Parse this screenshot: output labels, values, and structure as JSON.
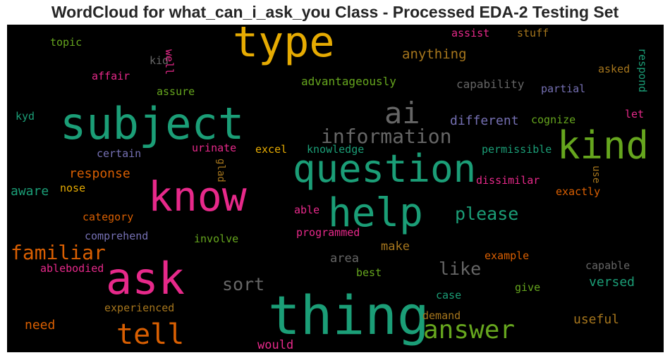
{
  "chart_data": {
    "type": "wordcloud",
    "title": "WordCloud for what_can_i_ask_you Class - Processed EDA-2 Testing Set",
    "background": "#000000",
    "palette": [
      "#1b9e77",
      "#d95f02",
      "#7570b3",
      "#e7298a",
      "#66a61e",
      "#e6ab02",
      "#a6761d",
      "#666666"
    ],
    "words": [
      {
        "text": "thing",
        "color": "#1b9e77"
      },
      {
        "text": "subject",
        "color": "#1b9e77"
      },
      {
        "text": "question",
        "color": "#1b9e77"
      },
      {
        "text": "ask",
        "color": "#e7298a"
      },
      {
        "text": "type",
        "color": "#e6ab02"
      },
      {
        "text": "know",
        "color": "#e7298a"
      },
      {
        "text": "kind",
        "color": "#66a61e"
      },
      {
        "text": "help",
        "color": "#1b9e77"
      },
      {
        "text": "ai",
        "color": "#666666"
      },
      {
        "text": "tell",
        "color": "#d95f02"
      },
      {
        "text": "answer",
        "color": "#66a61e"
      },
      {
        "text": "information",
        "color": "#666666"
      },
      {
        "text": "familiar",
        "color": "#d95f02"
      },
      {
        "text": "please",
        "color": "#1b9e77"
      },
      {
        "text": "like",
        "color": "#666666"
      },
      {
        "text": "sort",
        "color": "#666666"
      },
      {
        "text": "anything",
        "color": "#a6761d"
      },
      {
        "text": "different",
        "color": "#7570b3"
      },
      {
        "text": "response",
        "color": "#d95f02"
      },
      {
        "text": "aware",
        "color": "#1b9e77"
      },
      {
        "text": "useful",
        "color": "#a6761d"
      },
      {
        "text": "versed",
        "color": "#1b9e77"
      },
      {
        "text": "need",
        "color": "#d95f02"
      },
      {
        "text": "make",
        "color": "#a6761d"
      },
      {
        "text": "would",
        "color": "#e7298a"
      },
      {
        "text": "area",
        "color": "#666666"
      },
      {
        "text": "advantageously",
        "color": "#66a61e"
      },
      {
        "text": "capability",
        "color": "#666666"
      },
      {
        "text": "assure",
        "color": "#66a61e"
      },
      {
        "text": "affair",
        "color": "#e7298a"
      },
      {
        "text": "partial",
        "color": "#7570b3"
      },
      {
        "text": "cognize",
        "color": "#66a61e"
      },
      {
        "text": "topic",
        "color": "#66a61e"
      },
      {
        "text": "assist",
        "color": "#e7298a"
      },
      {
        "text": "stuff",
        "color": "#a6761d"
      },
      {
        "text": "kid",
        "color": "#666666"
      },
      {
        "text": "well",
        "color": "#e7298a"
      },
      {
        "text": "respond",
        "color": "#1b9e77"
      },
      {
        "text": "asked",
        "color": "#a6761d"
      },
      {
        "text": "let",
        "color": "#e7298a"
      },
      {
        "text": "kyd",
        "color": "#1b9e77"
      },
      {
        "text": "certain",
        "color": "#7570b3"
      },
      {
        "text": "urinate",
        "color": "#e7298a"
      },
      {
        "text": "excel",
        "color": "#e6ab02"
      },
      {
        "text": "knowledge",
        "color": "#1b9e77"
      },
      {
        "text": "permissible",
        "color": "#1b9e77"
      },
      {
        "text": "glad",
        "color": "#a6761d"
      },
      {
        "text": "use",
        "color": "#a6761d"
      },
      {
        "text": "dissimilar",
        "color": "#e7298a"
      },
      {
        "text": "exactly",
        "color": "#d95f02"
      },
      {
        "text": "nose",
        "color": "#e6ab02"
      },
      {
        "text": "able",
        "color": "#e7298a"
      },
      {
        "text": "category",
        "color": "#d95f02"
      },
      {
        "text": "comprehend",
        "color": "#7570b3"
      },
      {
        "text": "involve",
        "color": "#66a61e"
      },
      {
        "text": "programmed",
        "color": "#e7298a"
      },
      {
        "text": "ablebodied",
        "color": "#e7298a"
      },
      {
        "text": "example",
        "color": "#d95f02"
      },
      {
        "text": "best",
        "color": "#66a61e"
      },
      {
        "text": "capable",
        "color": "#666666"
      },
      {
        "text": "give",
        "color": "#66a61e"
      },
      {
        "text": "case",
        "color": "#1b9e77"
      },
      {
        "text": "experienced",
        "color": "#a6761d"
      },
      {
        "text": "demand",
        "color": "#a6761d"
      }
    ]
  }
}
